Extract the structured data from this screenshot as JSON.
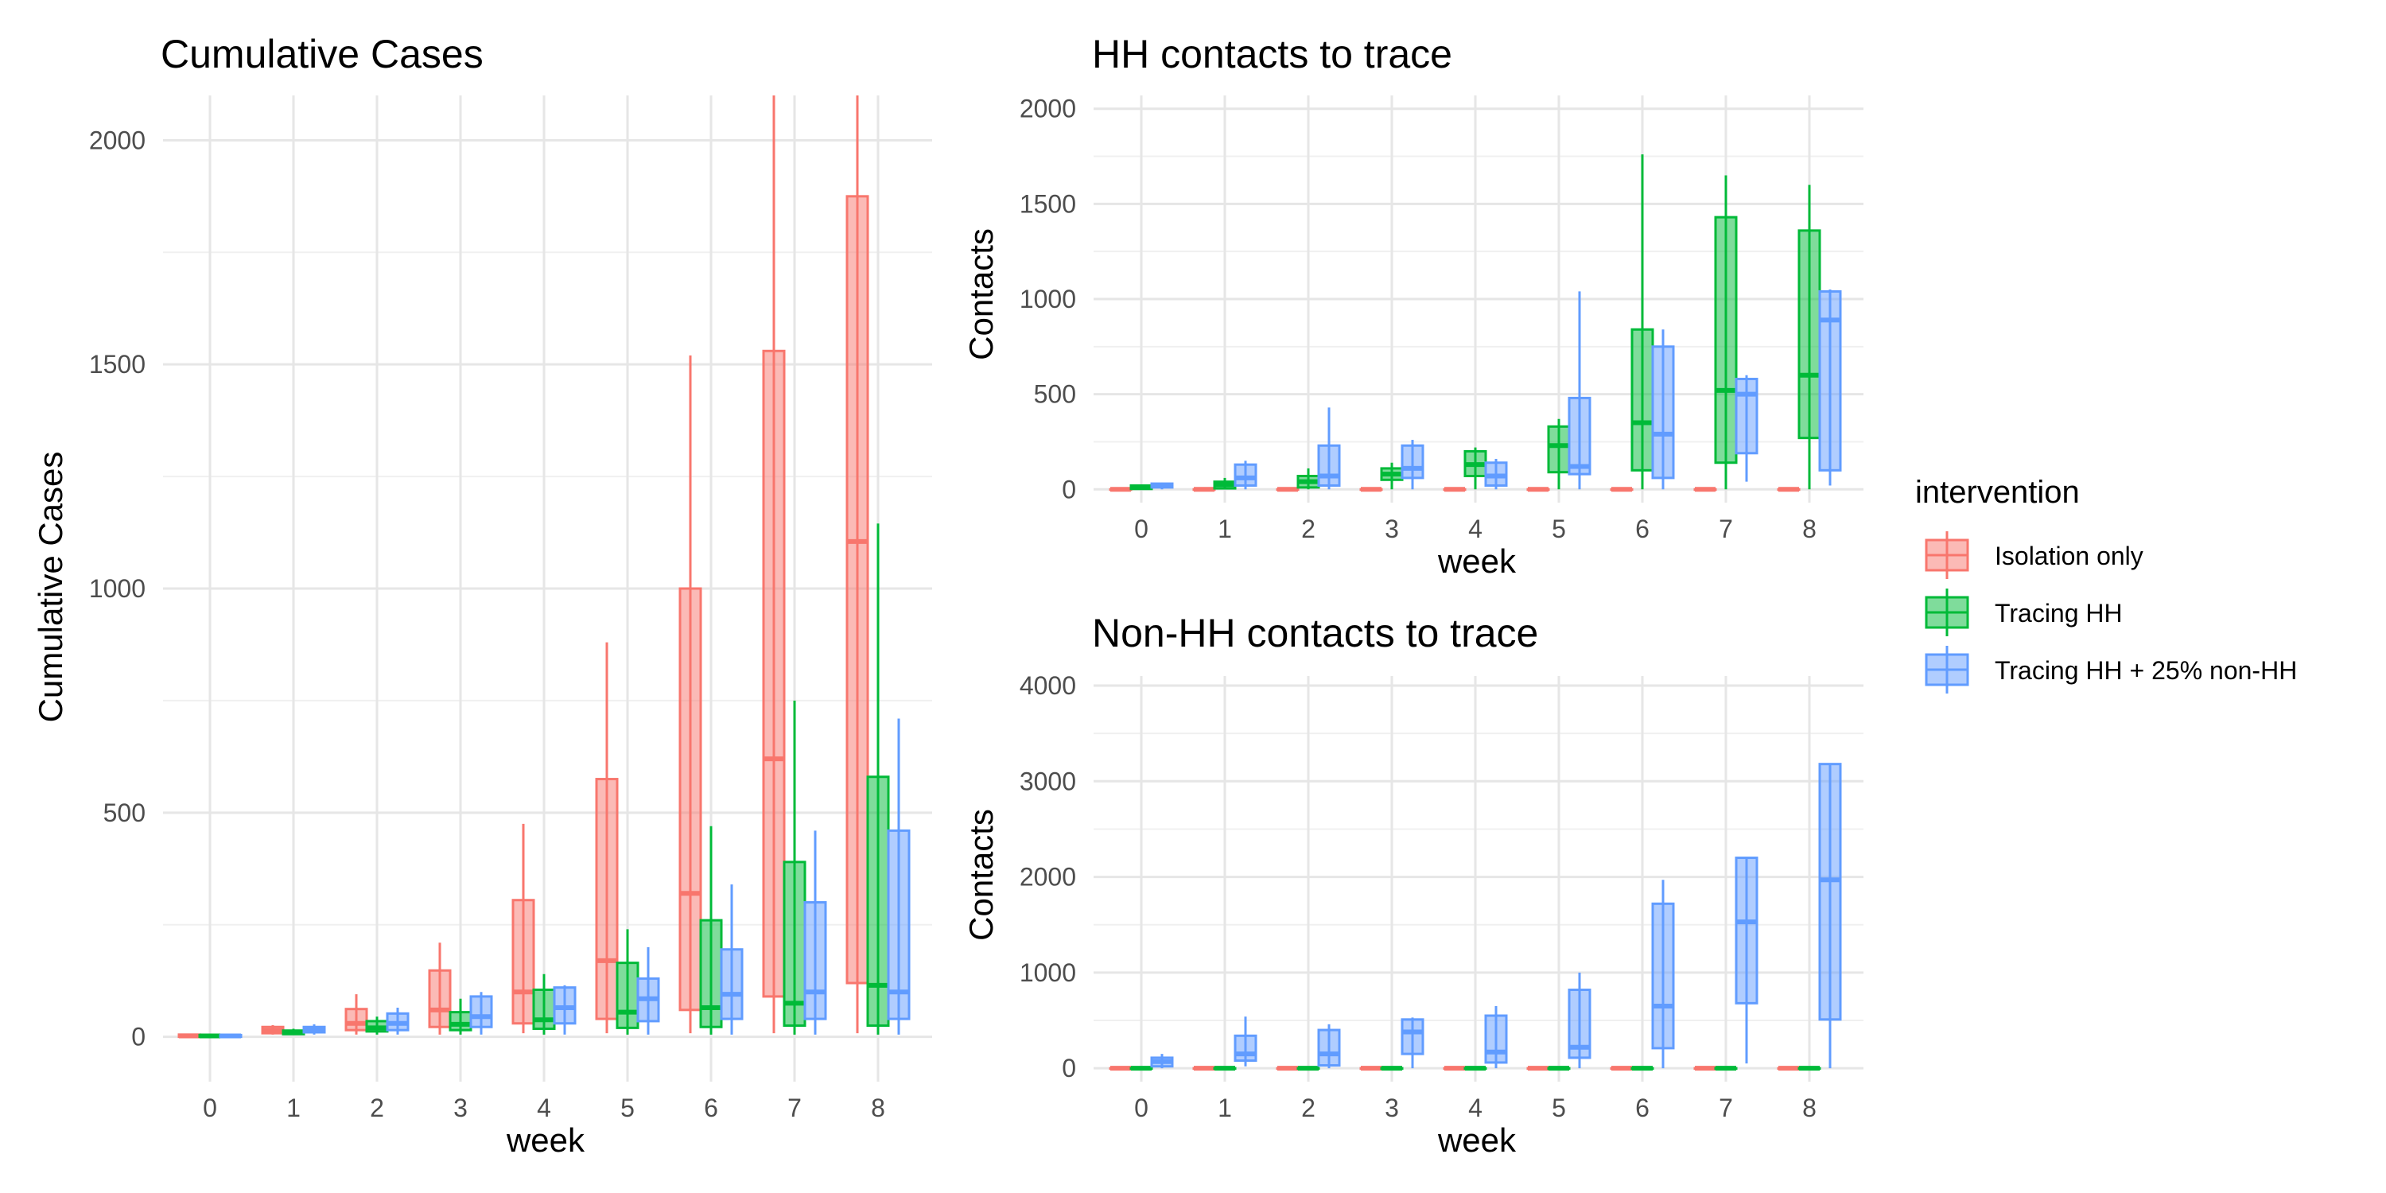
{
  "colors": {
    "Isolation only": "#F8766D",
    "Tracing HH": "#00BA38",
    "Tracing HH + 25% non-HH": "#619CFF",
    "grid_major": "#e6e6e6",
    "grid_minor": "#f0f0f0",
    "tick_text": "#4d4d4d"
  },
  "legend": {
    "title": "intervention",
    "entries": [
      "Isolation only",
      "Tracing HH",
      "Tracing HH + 25% non-HH"
    ],
    "placement": "right"
  },
  "chart_data": [
    {
      "type": "boxplot",
      "title": "Cumulative Cases",
      "xlabel": "week",
      "ylabel": "Cumulative Cases",
      "categories": [
        "0",
        "1",
        "2",
        "3",
        "4",
        "5",
        "6",
        "7",
        "8"
      ],
      "ylim": [
        -100,
        2100
      ],
      "yticks": [
        0,
        500,
        1000,
        1500,
        2000
      ],
      "grid": true,
      "series": [
        {
          "name": "Isolation only",
          "boxes": [
            {
              "week": 0,
              "min": 0,
              "q1": 0,
              "median": 2,
              "q3": 5,
              "max": 6
            },
            {
              "week": 1,
              "min": 5,
              "q1": 8,
              "median": 14,
              "q3": 22,
              "max": 26
            },
            {
              "week": 2,
              "min": 5,
              "q1": 15,
              "median": 30,
              "q3": 62,
              "max": 95
            },
            {
              "week": 3,
              "min": 5,
              "q1": 22,
              "median": 60,
              "q3": 148,
              "max": 210
            },
            {
              "week": 4,
              "min": 8,
              "q1": 30,
              "median": 100,
              "q3": 305,
              "max": 475
            },
            {
              "week": 5,
              "min": 8,
              "q1": 40,
              "median": 170,
              "q3": 575,
              "max": 880
            },
            {
              "week": 6,
              "min": 8,
              "q1": 60,
              "median": 320,
              "q3": 1000,
              "max": 1520
            },
            {
              "week": 7,
              "min": 8,
              "q1": 90,
              "median": 620,
              "q3": 1530,
              "max": 2100
            },
            {
              "week": 8,
              "min": 8,
              "q1": 120,
              "median": 1105,
              "q3": 1875,
              "max": 2100
            }
          ]
        },
        {
          "name": "Tracing HH",
          "boxes": [
            {
              "week": 0,
              "min": 0,
              "q1": 0,
              "median": 2,
              "q3": 4,
              "max": 5
            },
            {
              "week": 1,
              "min": 4,
              "q1": 6,
              "median": 10,
              "q3": 14,
              "max": 18
            },
            {
              "week": 2,
              "min": 5,
              "q1": 12,
              "median": 20,
              "q3": 35,
              "max": 45
            },
            {
              "week": 3,
              "min": 5,
              "q1": 15,
              "median": 28,
              "q3": 55,
              "max": 85
            },
            {
              "week": 4,
              "min": 5,
              "q1": 18,
              "median": 38,
              "q3": 105,
              "max": 140
            },
            {
              "week": 5,
              "min": 5,
              "q1": 20,
              "median": 55,
              "q3": 165,
              "max": 240
            },
            {
              "week": 6,
              "min": 5,
              "q1": 22,
              "median": 65,
              "q3": 260,
              "max": 470
            },
            {
              "week": 7,
              "min": 5,
              "q1": 25,
              "median": 75,
              "q3": 390,
              "max": 750
            },
            {
              "week": 8,
              "min": 5,
              "q1": 25,
              "median": 115,
              "q3": 580,
              "max": 1145
            }
          ]
        },
        {
          "name": "Tracing HH + 25% non-HH",
          "boxes": [
            {
              "week": 0,
              "min": 0,
              "q1": 0,
              "median": 2,
              "q3": 4,
              "max": 5
            },
            {
              "week": 1,
              "min": 5,
              "q1": 10,
              "median": 15,
              "q3": 22,
              "max": 28
            },
            {
              "week": 2,
              "min": 5,
              "q1": 15,
              "median": 30,
              "q3": 52,
              "max": 65
            },
            {
              "week": 3,
              "min": 5,
              "q1": 22,
              "median": 45,
              "q3": 90,
              "max": 100
            },
            {
              "week": 4,
              "min": 5,
              "q1": 30,
              "median": 65,
              "q3": 110,
              "max": 115
            },
            {
              "week": 5,
              "min": 5,
              "q1": 35,
              "median": 85,
              "q3": 130,
              "max": 200
            },
            {
              "week": 6,
              "min": 5,
              "q1": 40,
              "median": 95,
              "q3": 195,
              "max": 340
            },
            {
              "week": 7,
              "min": 5,
              "q1": 40,
              "median": 100,
              "q3": 300,
              "max": 460
            },
            {
              "week": 8,
              "min": 5,
              "q1": 40,
              "median": 100,
              "q3": 460,
              "max": 710
            }
          ]
        }
      ]
    },
    {
      "type": "boxplot",
      "title": "HH contacts to trace",
      "xlabel": "week",
      "ylabel": "Contacts",
      "categories": [
        "0",
        "1",
        "2",
        "3",
        "4",
        "5",
        "6",
        "7",
        "8"
      ],
      "ylim": [
        -70,
        2070
      ],
      "yticks": [
        0,
        500,
        1000,
        1500,
        2000
      ],
      "grid": true,
      "series": [
        {
          "name": "Isolation only",
          "boxes": [
            {
              "week": 0,
              "min": 0,
              "q1": 0,
              "median": 0,
              "q3": 0,
              "max": 0
            },
            {
              "week": 1,
              "min": 0,
              "q1": 0,
              "median": 0,
              "q3": 0,
              "max": 0
            },
            {
              "week": 2,
              "min": 0,
              "q1": 0,
              "median": 0,
              "q3": 0,
              "max": 0
            },
            {
              "week": 3,
              "min": 0,
              "q1": 0,
              "median": 0,
              "q3": 0,
              "max": 0
            },
            {
              "week": 4,
              "min": 0,
              "q1": 0,
              "median": 0,
              "q3": 0,
              "max": 0
            },
            {
              "week": 5,
              "min": 0,
              "q1": 0,
              "median": 0,
              "q3": 0,
              "max": 0
            },
            {
              "week": 6,
              "min": 0,
              "q1": 0,
              "median": 0,
              "q3": 0,
              "max": 0
            },
            {
              "week": 7,
              "min": 0,
              "q1": 0,
              "median": 0,
              "q3": 0,
              "max": 0
            },
            {
              "week": 8,
              "min": 0,
              "q1": 0,
              "median": 0,
              "q3": 0,
              "max": 0
            }
          ]
        },
        {
          "name": "Tracing HH",
          "boxes": [
            {
              "week": 0,
              "min": 0,
              "q1": 2,
              "median": 10,
              "q3": 20,
              "max": 25
            },
            {
              "week": 1,
              "min": 0,
              "q1": 5,
              "median": 25,
              "q3": 40,
              "max": 60
            },
            {
              "week": 2,
              "min": 0,
              "q1": 10,
              "median": 40,
              "q3": 70,
              "max": 110
            },
            {
              "week": 3,
              "min": 0,
              "q1": 50,
              "median": 80,
              "q3": 110,
              "max": 140
            },
            {
              "week": 4,
              "min": 0,
              "q1": 70,
              "median": 130,
              "q3": 200,
              "max": 220
            },
            {
              "week": 5,
              "min": 0,
              "q1": 90,
              "median": 230,
              "q3": 330,
              "max": 370
            },
            {
              "week": 6,
              "min": 0,
              "q1": 100,
              "median": 350,
              "q3": 840,
              "max": 1760
            },
            {
              "week": 7,
              "min": 0,
              "q1": 140,
              "median": 520,
              "q3": 1430,
              "max": 1650
            },
            {
              "week": 8,
              "min": 0,
              "q1": 270,
              "median": 600,
              "q3": 1360,
              "max": 1600
            }
          ]
        },
        {
          "name": "Tracing HH + 25% non-HH",
          "boxes": [
            {
              "week": 0,
              "min": 0,
              "q1": 10,
              "median": 20,
              "q3": 30,
              "max": 35
            },
            {
              "week": 1,
              "min": 0,
              "q1": 20,
              "median": 60,
              "q3": 130,
              "max": 150
            },
            {
              "week": 2,
              "min": 0,
              "q1": 20,
              "median": 70,
              "q3": 230,
              "max": 430
            },
            {
              "week": 3,
              "min": 0,
              "q1": 60,
              "median": 110,
              "q3": 230,
              "max": 260
            },
            {
              "week": 4,
              "min": 0,
              "q1": 20,
              "median": 70,
              "q3": 140,
              "max": 160
            },
            {
              "week": 5,
              "min": 0,
              "q1": 80,
              "median": 120,
              "q3": 480,
              "max": 1040
            },
            {
              "week": 6,
              "min": 0,
              "q1": 60,
              "median": 290,
              "q3": 750,
              "max": 840
            },
            {
              "week": 7,
              "min": 40,
              "q1": 190,
              "median": 500,
              "q3": 580,
              "max": 600
            },
            {
              "week": 8,
              "min": 20,
              "q1": 100,
              "median": 890,
              "q3": 1040,
              "max": 1050
            }
          ]
        }
      ]
    },
    {
      "type": "boxplot",
      "title": "Non-HH contacts to trace",
      "xlabel": "week",
      "ylabel": "Contacts",
      "categories": [
        "0",
        "1",
        "2",
        "3",
        "4",
        "5",
        "6",
        "7",
        "8"
      ],
      "ylim": [
        -140,
        4100
      ],
      "yticks": [
        0,
        1000,
        2000,
        3000,
        4000
      ],
      "grid": true,
      "series": [
        {
          "name": "Isolation only",
          "boxes": [
            {
              "week": 0,
              "min": 0,
              "q1": 0,
              "median": 0,
              "q3": 0,
              "max": 0
            },
            {
              "week": 1,
              "min": 0,
              "q1": 0,
              "median": 0,
              "q3": 0,
              "max": 0
            },
            {
              "week": 2,
              "min": 0,
              "q1": 0,
              "median": 0,
              "q3": 0,
              "max": 0
            },
            {
              "week": 3,
              "min": 0,
              "q1": 0,
              "median": 0,
              "q3": 0,
              "max": 0
            },
            {
              "week": 4,
              "min": 0,
              "q1": 0,
              "median": 0,
              "q3": 0,
              "max": 0
            },
            {
              "week": 5,
              "min": 0,
              "q1": 0,
              "median": 0,
              "q3": 0,
              "max": 0
            },
            {
              "week": 6,
              "min": 0,
              "q1": 0,
              "median": 0,
              "q3": 0,
              "max": 0
            },
            {
              "week": 7,
              "min": 0,
              "q1": 0,
              "median": 0,
              "q3": 0,
              "max": 0
            },
            {
              "week": 8,
              "min": 0,
              "q1": 0,
              "median": 0,
              "q3": 0,
              "max": 0
            }
          ]
        },
        {
          "name": "Tracing HH",
          "boxes": [
            {
              "week": 0,
              "min": 0,
              "q1": 0,
              "median": 0,
              "q3": 0,
              "max": 0
            },
            {
              "week": 1,
              "min": 0,
              "q1": 0,
              "median": 0,
              "q3": 0,
              "max": 0
            },
            {
              "week": 2,
              "min": 0,
              "q1": 0,
              "median": 0,
              "q3": 0,
              "max": 0
            },
            {
              "week": 3,
              "min": 0,
              "q1": 0,
              "median": 0,
              "q3": 0,
              "max": 0
            },
            {
              "week": 4,
              "min": 0,
              "q1": 0,
              "median": 0,
              "q3": 0,
              "max": 0
            },
            {
              "week": 5,
              "min": 0,
              "q1": 0,
              "median": 0,
              "q3": 0,
              "max": 0
            },
            {
              "week": 6,
              "min": 0,
              "q1": 0,
              "median": 0,
              "q3": 0,
              "max": 0
            },
            {
              "week": 7,
              "min": 0,
              "q1": 0,
              "median": 0,
              "q3": 0,
              "max": 0
            },
            {
              "week": 8,
              "min": 0,
              "q1": 0,
              "median": 0,
              "q3": 0,
              "max": 0
            }
          ]
        },
        {
          "name": "Tracing HH + 25% non-HH",
          "boxes": [
            {
              "week": 0,
              "min": 0,
              "q1": 20,
              "median": 70,
              "q3": 110,
              "max": 150
            },
            {
              "week": 1,
              "min": 20,
              "q1": 80,
              "median": 150,
              "q3": 340,
              "max": 540
            },
            {
              "week": 2,
              "min": 0,
              "q1": 30,
              "median": 150,
              "q3": 400,
              "max": 460
            },
            {
              "week": 3,
              "min": 0,
              "q1": 150,
              "median": 380,
              "q3": 510,
              "max": 530
            },
            {
              "week": 4,
              "min": 0,
              "q1": 60,
              "median": 170,
              "q3": 550,
              "max": 650
            },
            {
              "week": 5,
              "min": 0,
              "q1": 110,
              "median": 220,
              "q3": 820,
              "max": 1000
            },
            {
              "week": 6,
              "min": 0,
              "q1": 210,
              "median": 650,
              "q3": 1720,
              "max": 1970
            },
            {
              "week": 7,
              "min": 50,
              "q1": 680,
              "median": 1530,
              "q3": 2200,
              "max": 2200
            },
            {
              "week": 8,
              "min": 0,
              "q1": 510,
              "median": 1970,
              "q3": 3180,
              "max": 3180
            }
          ]
        }
      ]
    }
  ]
}
